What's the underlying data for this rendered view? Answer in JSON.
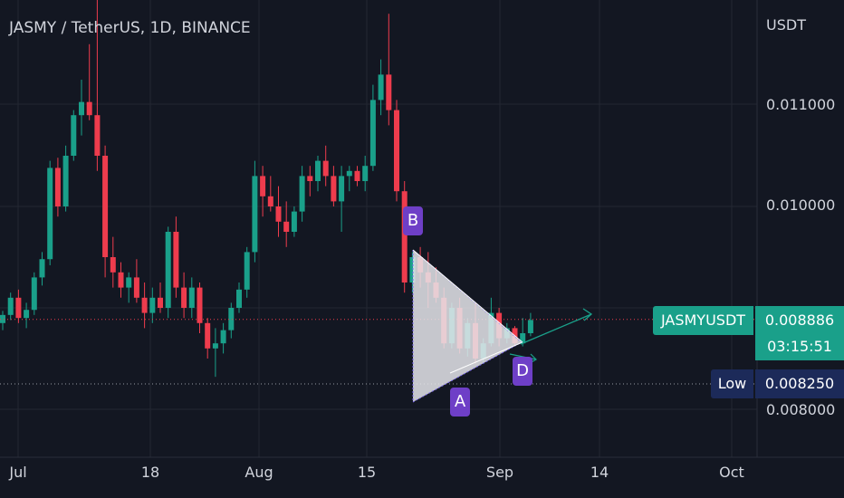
{
  "chart_data": {
    "type": "candlestick",
    "title": "JASMY / TetherUS, 1D, BINANCE",
    "price_unit": "USDT",
    "y_ticks": [
      "0.011000",
      "0.010000",
      "0.008000"
    ],
    "x_ticks": [
      "Jul",
      "18",
      "Aug",
      "15",
      "Sep",
      "14",
      "Oct"
    ],
    "ylim": [
      0.0076,
      0.0121
    ],
    "grid": true,
    "candles": [
      [
        0.00885,
        0.00897,
        0.00878,
        0.00893
      ],
      [
        0.00893,
        0.00915,
        0.00888,
        0.0091
      ],
      [
        0.0091,
        0.00918,
        0.00885,
        0.0089
      ],
      [
        0.0089,
        0.00905,
        0.0088,
        0.00898
      ],
      [
        0.00898,
        0.00935,
        0.00893,
        0.0093
      ],
      [
        0.0093,
        0.00955,
        0.00922,
        0.00948
      ],
      [
        0.00948,
        0.01045,
        0.00942,
        0.01038
      ],
      [
        0.01038,
        0.01048,
        0.0099,
        0.01
      ],
      [
        0.01,
        0.0106,
        0.00995,
        0.0105
      ],
      [
        0.0105,
        0.01095,
        0.01045,
        0.0109
      ],
      [
        0.0109,
        0.01125,
        0.0107,
        0.01103
      ],
      [
        0.01103,
        0.0116,
        0.01085,
        0.0109
      ],
      [
        0.0109,
        0.01215,
        0.01035,
        0.0105
      ],
      [
        0.0105,
        0.0106,
        0.0093,
        0.0095
      ],
      [
        0.0095,
        0.0097,
        0.0092,
        0.00935
      ],
      [
        0.00935,
        0.00945,
        0.0091,
        0.0092
      ],
      [
        0.0092,
        0.00935,
        0.00905,
        0.0093
      ],
      [
        0.0093,
        0.00948,
        0.00905,
        0.0091
      ],
      [
        0.0091,
        0.00925,
        0.0088,
        0.00895
      ],
      [
        0.00895,
        0.0092,
        0.00885,
        0.0091
      ],
      [
        0.0091,
        0.00925,
        0.00895,
        0.009
      ],
      [
        0.009,
        0.0098,
        0.0089,
        0.00975
      ],
      [
        0.00975,
        0.0099,
        0.0091,
        0.0092
      ],
      [
        0.0092,
        0.00935,
        0.0089,
        0.009
      ],
      [
        0.009,
        0.0093,
        0.0089,
        0.0092
      ],
      [
        0.0092,
        0.00925,
        0.00875,
        0.00885
      ],
      [
        0.00885,
        0.0089,
        0.0085,
        0.0086
      ],
      [
        0.0086,
        0.0088,
        0.00832,
        0.00865
      ],
      [
        0.00865,
        0.00885,
        0.00855,
        0.00878
      ],
      [
        0.00878,
        0.00905,
        0.0087,
        0.009
      ],
      [
        0.009,
        0.00925,
        0.00895,
        0.00918
      ],
      [
        0.00918,
        0.0096,
        0.0091,
        0.00955
      ],
      [
        0.00955,
        0.01045,
        0.00945,
        0.0103
      ],
      [
        0.0103,
        0.0104,
        0.0099,
        0.0101
      ],
      [
        0.0101,
        0.0103,
        0.00995,
        0.01
      ],
      [
        0.01,
        0.0102,
        0.0097,
        0.00985
      ],
      [
        0.00985,
        0.01005,
        0.0096,
        0.00975
      ],
      [
        0.00975,
        0.01,
        0.0097,
        0.00995
      ],
      [
        0.00995,
        0.0104,
        0.00985,
        0.0103
      ],
      [
        0.0103,
        0.0104,
        0.0101,
        0.01025
      ],
      [
        0.01025,
        0.0105,
        0.01015,
        0.01045
      ],
      [
        0.01045,
        0.0106,
        0.0102,
        0.0103
      ],
      [
        0.0103,
        0.0104,
        0.01,
        0.01005
      ],
      [
        0.01005,
        0.0104,
        0.00975,
        0.0103
      ],
      [
        0.0103,
        0.0104,
        0.01015,
        0.01035
      ],
      [
        0.01035,
        0.0104,
        0.0102,
        0.01025
      ],
      [
        0.01025,
        0.0105,
        0.01015,
        0.0104
      ],
      [
        0.0104,
        0.0112,
        0.01035,
        0.01105
      ],
      [
        0.01105,
        0.01145,
        0.0109,
        0.0113
      ],
      [
        0.0113,
        0.0119,
        0.0108,
        0.01095
      ],
      [
        0.01095,
        0.01105,
        0.01005,
        0.01015
      ],
      [
        0.01015,
        0.01025,
        0.00915,
        0.00925
      ],
      [
        0.00925,
        0.00955,
        0.00915,
        0.0095
      ],
      [
        0.0095,
        0.0096,
        0.0092,
        0.00935
      ],
      [
        0.00935,
        0.00955,
        0.009,
        0.00925
      ],
      [
        0.00925,
        0.0094,
        0.00905,
        0.0091
      ],
      [
        0.0091,
        0.0092,
        0.0086,
        0.00865
      ],
      [
        0.00865,
        0.00905,
        0.0086,
        0.009
      ],
      [
        0.009,
        0.0091,
        0.00855,
        0.0086
      ],
      [
        0.0086,
        0.0089,
        0.00852,
        0.00885
      ],
      [
        0.00885,
        0.00905,
        0.00845,
        0.0085
      ],
      [
        0.0085,
        0.0087,
        0.00845,
        0.00865
      ],
      [
        0.00865,
        0.0091,
        0.00862,
        0.00895
      ],
      [
        0.00895,
        0.009,
        0.00862,
        0.0087
      ],
      [
        0.0087,
        0.00885,
        0.00865,
        0.0088
      ],
      [
        0.0088,
        0.00882,
        0.00862,
        0.00865
      ],
      [
        0.00865,
        0.0089,
        0.00862,
        0.00875
      ],
      [
        0.00875,
        0.00895,
        0.00872,
        0.00888
      ]
    ],
    "last_price": "0.008886",
    "symbol": "JASMYUSDT",
    "countdown": "03:15:51",
    "low_label": "Low",
    "low_value": "0.008250",
    "low_price": 0.00825,
    "pattern_points": [
      "B",
      "A",
      "D"
    ]
  }
}
